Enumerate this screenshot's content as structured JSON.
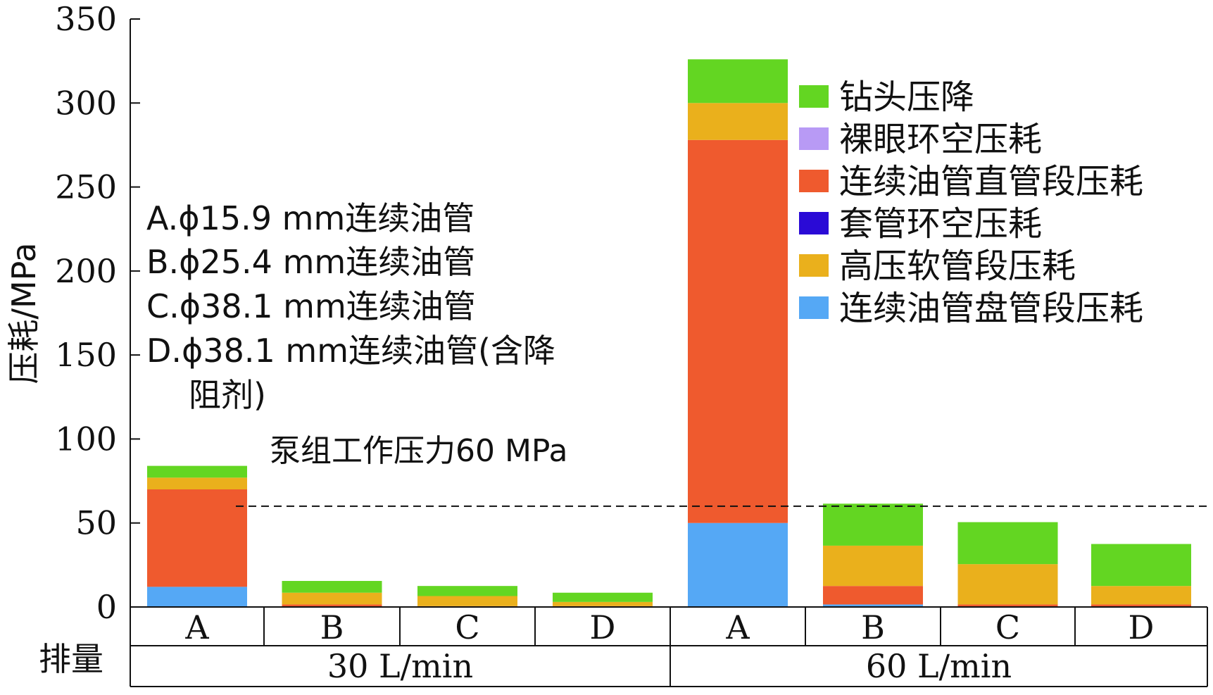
{
  "chart_data": {
    "type": "bar",
    "stacked": true,
    "ylabel": "压耗/MPa",
    "ylim": [
      0,
      350
    ],
    "yticks": [
      0,
      50,
      100,
      150,
      200,
      250,
      300,
      350
    ],
    "categories": [
      "A",
      "B",
      "C",
      "D",
      "A",
      "B",
      "C",
      "D"
    ],
    "groups": [
      {
        "label": "30 L/min",
        "span": 4
      },
      {
        "label": "60 L/min",
        "span": 4
      }
    ],
    "x_row_label": "排量",
    "series": [
      {
        "name": "连续油管盘管段压耗",
        "color": "#55a8f5",
        "values": [
          12,
          0,
          0,
          0,
          50,
          1.5,
          0,
          0
        ]
      },
      {
        "name": "套管环空压耗",
        "color": "#2a0ad6",
        "values": [
          0,
          0,
          0,
          0,
          0,
          0,
          0,
          0
        ]
      },
      {
        "name": "连续油管直管段压耗",
        "color": "#ef5a2e",
        "values": [
          58,
          1.5,
          0.5,
          0.5,
          228,
          11,
          1.5,
          1.5
        ]
      },
      {
        "name": "高压软管段压耗",
        "color": "#eab01c",
        "values": [
          7,
          7,
          6,
          2.5,
          22,
          24,
          24,
          11
        ]
      },
      {
        "name": "裸眼环空压耗",
        "color": "#b89af5",
        "values": [
          0,
          0,
          0,
          0,
          0,
          0,
          0,
          0
        ]
      },
      {
        "name": "钻头压降",
        "color": "#63d622",
        "values": [
          7,
          7,
          6,
          5.5,
          26,
          25,
          25,
          25
        ]
      }
    ],
    "legend_order": [
      "钻头压降",
      "裸眼环空压耗",
      "连续油管直管段压耗",
      "套管环空压耗",
      "高压软管段压耗",
      "连续油管盘管段压耗"
    ],
    "legend_position": "top-right",
    "reference_line": {
      "value": 60,
      "label": "泵组工作压力60 MPa",
      "style": "dashed"
    },
    "annotations": [
      "A.ϕ15.9 mm连续油管",
      "B.ϕ25.4 mm连续油管",
      "C.ϕ38.1 mm连续油管",
      "D.ϕ38.1 mm连续油管(含降",
      "阻剂)"
    ],
    "grid": false
  }
}
